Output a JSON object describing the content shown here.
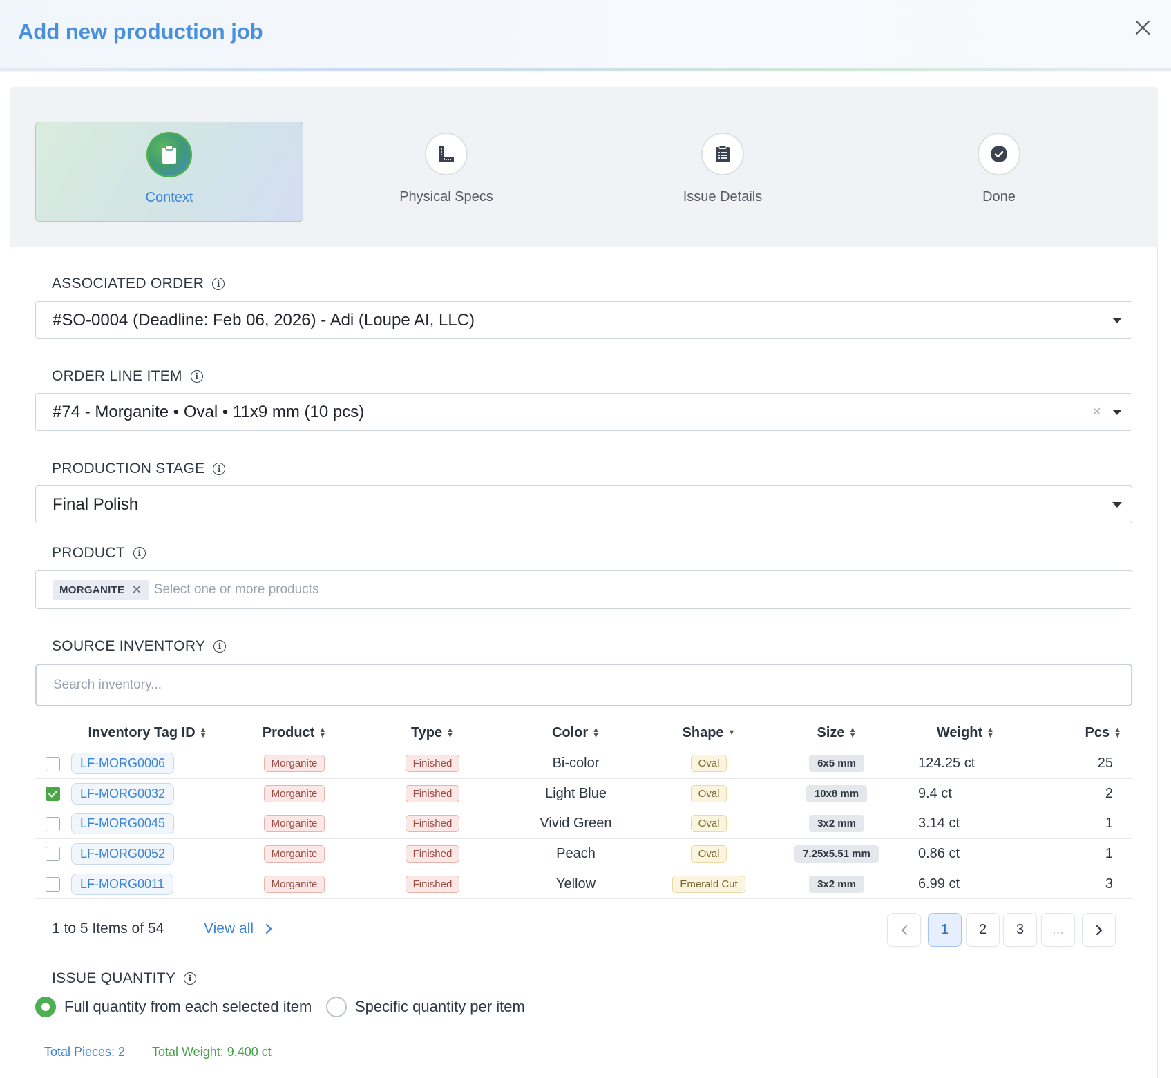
{
  "header": {
    "title": "Add new production job"
  },
  "stepper": [
    {
      "label": "Context",
      "icon": "clipboard-icon",
      "active": true
    },
    {
      "label": "Physical Specs",
      "icon": "ruler-icon",
      "active": false
    },
    {
      "label": "Issue Details",
      "icon": "list-clipboard-icon",
      "active": false
    },
    {
      "label": "Done",
      "icon": "check-circle-icon",
      "active": false
    }
  ],
  "associated_order": {
    "label": "ASSOCIATED ORDER",
    "value": "#SO-0004 (Deadline: Feb 06, 2026) - Adi (Loupe AI, LLC)"
  },
  "order_line_item": {
    "label": "ORDER LINE ITEM",
    "value": "#74 - Morganite • Oval • 11x9 mm (10 pcs)",
    "clear": "×"
  },
  "production_stage": {
    "label": "PRODUCTION STAGE",
    "value": "Final Polish"
  },
  "product": {
    "label": "PRODUCT",
    "chip": "MORGANITE",
    "chip_remove": "✕",
    "placeholder": "Select one or more products"
  },
  "source_inventory": {
    "label": "SOURCE INVENTORY",
    "search_placeholder": "Search inventory...",
    "columns": [
      "Inventory Tag ID",
      "Product",
      "Type",
      "Color",
      "Shape",
      "Size",
      "Weight",
      "Pcs"
    ],
    "rows": [
      {
        "checked": false,
        "tag": "LF-MORG0006",
        "product": "Morganite",
        "type": "Finished",
        "color": "Bi-color",
        "shape": "Oval",
        "size": "6x5 mm",
        "weight": "124.25 ct",
        "pcs": "25"
      },
      {
        "checked": true,
        "tag": "LF-MORG0032",
        "product": "Morganite",
        "type": "Finished",
        "color": "Light Blue",
        "shape": "Oval",
        "size": "10x8 mm",
        "weight": "9.4 ct",
        "pcs": "2"
      },
      {
        "checked": false,
        "tag": "LF-MORG0045",
        "product": "Morganite",
        "type": "Finished",
        "color": "Vivid Green",
        "shape": "Oval",
        "size": "3x2 mm",
        "weight": "3.14 ct",
        "pcs": "1"
      },
      {
        "checked": false,
        "tag": "LF-MORG0052",
        "product": "Morganite",
        "type": "Finished",
        "color": "Peach",
        "shape": "Oval",
        "size": "7.25x5.51 mm",
        "weight": "0.86 ct",
        "pcs": "1"
      },
      {
        "checked": false,
        "tag": "LF-MORG0011",
        "product": "Morganite",
        "type": "Finished",
        "color": "Yellow",
        "shape": "Emerald Cut",
        "size": "3x2 mm",
        "weight": "6.99 ct",
        "pcs": "3"
      }
    ],
    "pagination": {
      "info": "1 to 5 Items of 54",
      "view_all": "View all",
      "pages": [
        "1",
        "2",
        "3",
        "..."
      ],
      "current": "1"
    }
  },
  "issue_quantity": {
    "label": "ISSUE QUANTITY",
    "options": [
      "Full quantity from each selected item",
      "Specific quantity per item"
    ],
    "selected": 0
  },
  "totals": {
    "pieces": "Total Pieces: 2",
    "weight": "Total Weight: 9.400 ct"
  },
  "colors": {
    "accent": "#4a8fdc",
    "success": "#4caf50",
    "danger_bg": "#fbe7e5"
  }
}
